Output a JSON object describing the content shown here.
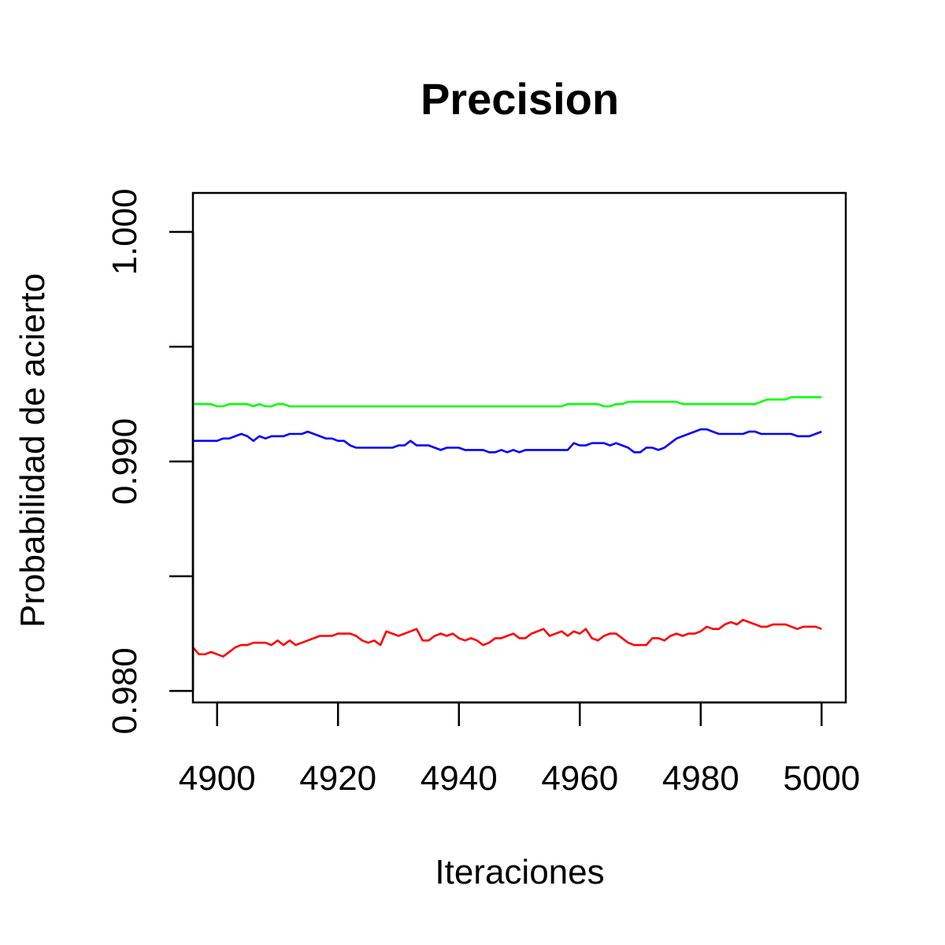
{
  "chart_data": {
    "type": "line",
    "title": "Precision",
    "xlabel": "Iteraciones",
    "ylabel": "Probabilidad de acierto",
    "xlim": [
      4896,
      5004
    ],
    "ylim": [
      0.9795,
      1.0017
    ],
    "x_ticks": [
      4900,
      4920,
      4940,
      4960,
      4980,
      5000
    ],
    "x_tick_labels": [
      "4900",
      "4920",
      "4940",
      "4960",
      "4980",
      "5000"
    ],
    "y_ticks": [
      0.98,
      0.985,
      0.99,
      0.995,
      1.0
    ],
    "y_tick_labels": [
      "0.980",
      "",
      "0.990",
      "",
      "1.000"
    ],
    "grid": false,
    "series": [
      {
        "color": "#00ff00",
        "points": [
          [
            4896,
            0.9925
          ],
          [
            4899,
            0.9925
          ],
          [
            4900,
            0.9924
          ],
          [
            4901,
            0.9924
          ],
          [
            4902,
            0.9925
          ],
          [
            4905,
            0.9925
          ],
          [
            4906,
            0.9924
          ],
          [
            4907,
            0.9925
          ],
          [
            4908,
            0.9924
          ],
          [
            4909,
            0.9924
          ],
          [
            4910,
            0.9925
          ],
          [
            4911,
            0.9925
          ],
          [
            4912,
            0.9924
          ],
          [
            4957,
            0.9924
          ],
          [
            4958,
            0.9925
          ],
          [
            4963,
            0.9925
          ],
          [
            4964,
            0.9924
          ],
          [
            4965,
            0.9924
          ],
          [
            4966,
            0.9925
          ],
          [
            4967,
            0.9925
          ],
          [
            4968,
            0.9926
          ],
          [
            4976,
            0.9926
          ],
          [
            4977,
            0.9925
          ],
          [
            4989,
            0.9925
          ],
          [
            4990,
            0.9926
          ],
          [
            4991,
            0.9927
          ],
          [
            4994,
            0.9927
          ],
          [
            4995,
            0.9928
          ],
          [
            5000,
            0.9928
          ]
        ]
      },
      {
        "color": "#0000ff",
        "points": [
          [
            4896,
            0.9909
          ],
          [
            4900,
            0.9909
          ],
          [
            4901,
            0.991
          ],
          [
            4902,
            0.991
          ],
          [
            4903,
            0.9911
          ],
          [
            4904,
            0.9912
          ],
          [
            4905,
            0.9911
          ],
          [
            4906,
            0.9909
          ],
          [
            4907,
            0.9911
          ],
          [
            4908,
            0.991
          ],
          [
            4909,
            0.9911
          ],
          [
            4911,
            0.9911
          ],
          [
            4912,
            0.9912
          ],
          [
            4914,
            0.9912
          ],
          [
            4915,
            0.9913
          ],
          [
            4916,
            0.9912
          ],
          [
            4917,
            0.9911
          ],
          [
            4918,
            0.991
          ],
          [
            4919,
            0.991
          ],
          [
            4920,
            0.9909
          ],
          [
            4921,
            0.9909
          ],
          [
            4922,
            0.9907
          ],
          [
            4923,
            0.9906
          ],
          [
            4929,
            0.9906
          ],
          [
            4930,
            0.9907
          ],
          [
            4931,
            0.9907
          ],
          [
            4932,
            0.9909
          ],
          [
            4933,
            0.9907
          ],
          [
            4935,
            0.9907
          ],
          [
            4936,
            0.9906
          ],
          [
            4937,
            0.9905
          ],
          [
            4938,
            0.9906
          ],
          [
            4940,
            0.9906
          ],
          [
            4941,
            0.9905
          ],
          [
            4944,
            0.9905
          ],
          [
            4945,
            0.9904
          ],
          [
            4946,
            0.9904
          ],
          [
            4947,
            0.9905
          ],
          [
            4948,
            0.9904
          ],
          [
            4949,
            0.9905
          ],
          [
            4950,
            0.9904
          ],
          [
            4951,
            0.9905
          ],
          [
            4958,
            0.9905
          ],
          [
            4959,
            0.9908
          ],
          [
            4960,
            0.9907
          ],
          [
            4961,
            0.9907
          ],
          [
            4962,
            0.9908
          ],
          [
            4964,
            0.9908
          ],
          [
            4965,
            0.9907
          ],
          [
            4966,
            0.9908
          ],
          [
            4967,
            0.9907
          ],
          [
            4968,
            0.9906
          ],
          [
            4969,
            0.9904
          ],
          [
            4970,
            0.9904
          ],
          [
            4971,
            0.9906
          ],
          [
            4972,
            0.9906
          ],
          [
            4973,
            0.9905
          ],
          [
            4974,
            0.9906
          ],
          [
            4975,
            0.9908
          ],
          [
            4976,
            0.991
          ],
          [
            4977,
            0.9911
          ],
          [
            4978,
            0.9912
          ],
          [
            4979,
            0.9913
          ],
          [
            4980,
            0.9914
          ],
          [
            4981,
            0.9914
          ],
          [
            4982,
            0.9913
          ],
          [
            4983,
            0.9912
          ],
          [
            4987,
            0.9912
          ],
          [
            4988,
            0.9913
          ],
          [
            4989,
            0.9913
          ],
          [
            4990,
            0.9912
          ],
          [
            4995,
            0.9912
          ],
          [
            4996,
            0.9911
          ],
          [
            4998,
            0.9911
          ],
          [
            4999,
            0.9912
          ],
          [
            5000,
            0.9913
          ]
        ]
      },
      {
        "color": "#ff0000",
        "points": [
          [
            4896,
            0.9819
          ],
          [
            4897,
            0.9816
          ],
          [
            4898,
            0.9816
          ],
          [
            4899,
            0.9817
          ],
          [
            4900,
            0.9816
          ],
          [
            4901,
            0.9815
          ],
          [
            4902,
            0.9817
          ],
          [
            4903,
            0.9819
          ],
          [
            4904,
            0.982
          ],
          [
            4905,
            0.982
          ],
          [
            4906,
            0.9821
          ],
          [
            4908,
            0.9821
          ],
          [
            4909,
            0.982
          ],
          [
            4910,
            0.9822
          ],
          [
            4911,
            0.982
          ],
          [
            4912,
            0.9822
          ],
          [
            4913,
            0.982
          ],
          [
            4914,
            0.9821
          ],
          [
            4917,
            0.9824
          ],
          [
            4919,
            0.9824
          ],
          [
            4920,
            0.9825
          ],
          [
            4922,
            0.9825
          ],
          [
            4923,
            0.9824
          ],
          [
            4924,
            0.9822
          ],
          [
            4925,
            0.9821
          ],
          [
            4926,
            0.9822
          ],
          [
            4927,
            0.982
          ],
          [
            4928,
            0.9826
          ],
          [
            4929,
            0.9825
          ],
          [
            4930,
            0.9824
          ],
          [
            4931,
            0.9825
          ],
          [
            4933,
            0.9827
          ],
          [
            4934,
            0.9822
          ],
          [
            4935,
            0.9822
          ],
          [
            4936,
            0.9824
          ],
          [
            4937,
            0.9825
          ],
          [
            4938,
            0.9824
          ],
          [
            4939,
            0.9825
          ],
          [
            4940,
            0.9823
          ],
          [
            4941,
            0.9822
          ],
          [
            4942,
            0.9823
          ],
          [
            4943,
            0.9822
          ],
          [
            4944,
            0.982
          ],
          [
            4945,
            0.9821
          ],
          [
            4946,
            0.9823
          ],
          [
            4947,
            0.9823
          ],
          [
            4948,
            0.9824
          ],
          [
            4949,
            0.9825
          ],
          [
            4950,
            0.9823
          ],
          [
            4951,
            0.9823
          ],
          [
            4952,
            0.9825
          ],
          [
            4954,
            0.9827
          ],
          [
            4955,
            0.9824
          ],
          [
            4957,
            0.9826
          ],
          [
            4958,
            0.9824
          ],
          [
            4959,
            0.9826
          ],
          [
            4960,
            0.9825
          ],
          [
            4961,
            0.9827
          ],
          [
            4962,
            0.9823
          ],
          [
            4963,
            0.9822
          ],
          [
            4964,
            0.9824
          ],
          [
            4965,
            0.9825
          ],
          [
            4966,
            0.9825
          ],
          [
            4967,
            0.9823
          ],
          [
            4968,
            0.9821
          ],
          [
            4969,
            0.982
          ],
          [
            4970,
            0.982
          ],
          [
            4971,
            0.982
          ],
          [
            4972,
            0.9823
          ],
          [
            4973,
            0.9823
          ],
          [
            4974,
            0.9822
          ],
          [
            4975,
            0.9824
          ],
          [
            4976,
            0.9825
          ],
          [
            4977,
            0.9824
          ],
          [
            4978,
            0.9825
          ],
          [
            4979,
            0.9825
          ],
          [
            4980,
            0.9826
          ],
          [
            4981,
            0.9828
          ],
          [
            4982,
            0.9827
          ],
          [
            4983,
            0.9827
          ],
          [
            4984,
            0.9829
          ],
          [
            4985,
            0.983
          ],
          [
            4986,
            0.9829
          ],
          [
            4987,
            0.9831
          ],
          [
            4988,
            0.983
          ],
          [
            4989,
            0.9829
          ],
          [
            4990,
            0.9828
          ],
          [
            4991,
            0.9828
          ],
          [
            4992,
            0.9829
          ],
          [
            4994,
            0.9829
          ],
          [
            4995,
            0.9828
          ],
          [
            4996,
            0.9827
          ],
          [
            4997,
            0.9828
          ],
          [
            4999,
            0.9828
          ],
          [
            5000,
            0.9827
          ]
        ]
      }
    ]
  }
}
